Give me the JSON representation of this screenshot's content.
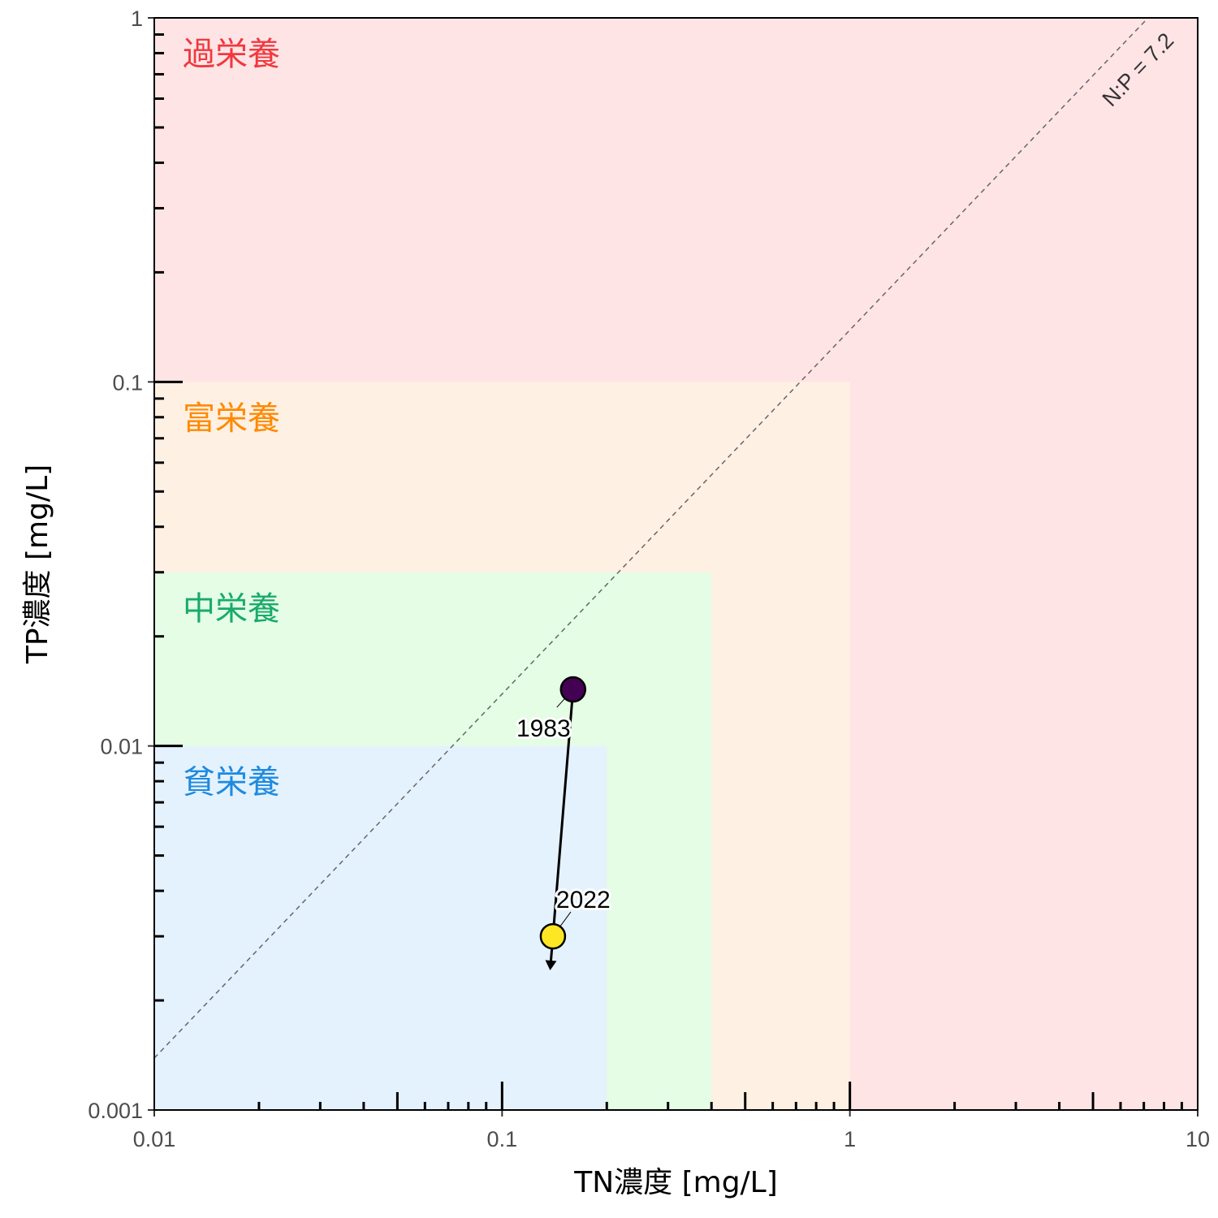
{
  "chart_data": {
    "type": "scatter",
    "title": "",
    "xlabel": "TN濃度 [mg/L]",
    "ylabel": "TP濃度 [mg/L]",
    "x_scale": "log",
    "y_scale": "log",
    "xlim": [
      0.01,
      10
    ],
    "ylim": [
      0.001,
      1
    ],
    "x_ticks": [
      {
        "value": 0.01,
        "label": "0.01"
      },
      {
        "value": 0.1,
        "label": "0.1"
      },
      {
        "value": 1,
        "label": "1"
      },
      {
        "value": 10,
        "label": "10"
      }
    ],
    "y_ticks": [
      {
        "value": 0.001,
        "label": "0.001"
      },
      {
        "value": 0.01,
        "label": "0.01"
      },
      {
        "value": 0.1,
        "label": "0.1"
      },
      {
        "value": 1,
        "label": "1"
      }
    ],
    "zones": [
      {
        "label": "過栄養",
        "tn_max": 10,
        "tp_max": 1,
        "fill": "#ffe4e6",
        "text_color": "#f0393f"
      },
      {
        "label": "富栄養",
        "tn_max": 1,
        "tp_max": 0.1,
        "fill": "#fff0e4",
        "text_color": "#ff8a00"
      },
      {
        "label": "中栄養",
        "tn_max": 0.4,
        "tp_max": 0.03,
        "fill": "#e4fde4",
        "text_color": "#1aaa6c"
      },
      {
        "label": "貧栄養",
        "tn_max": 0.2,
        "tp_max": 0.01,
        "fill": "#e4f2fd",
        "text_color": "#1f8ae0"
      }
    ],
    "ratio_line": {
      "label": "N:P = 7.2",
      "ratio": 7.2
    },
    "points": [
      {
        "year": "1983",
        "tn": 0.16,
        "tp": 0.0143,
        "color": "#440154"
      },
      {
        "year": "2022",
        "tn": 0.14,
        "tp": 0.003,
        "color": "#fde725"
      }
    ],
    "grid": false
  }
}
